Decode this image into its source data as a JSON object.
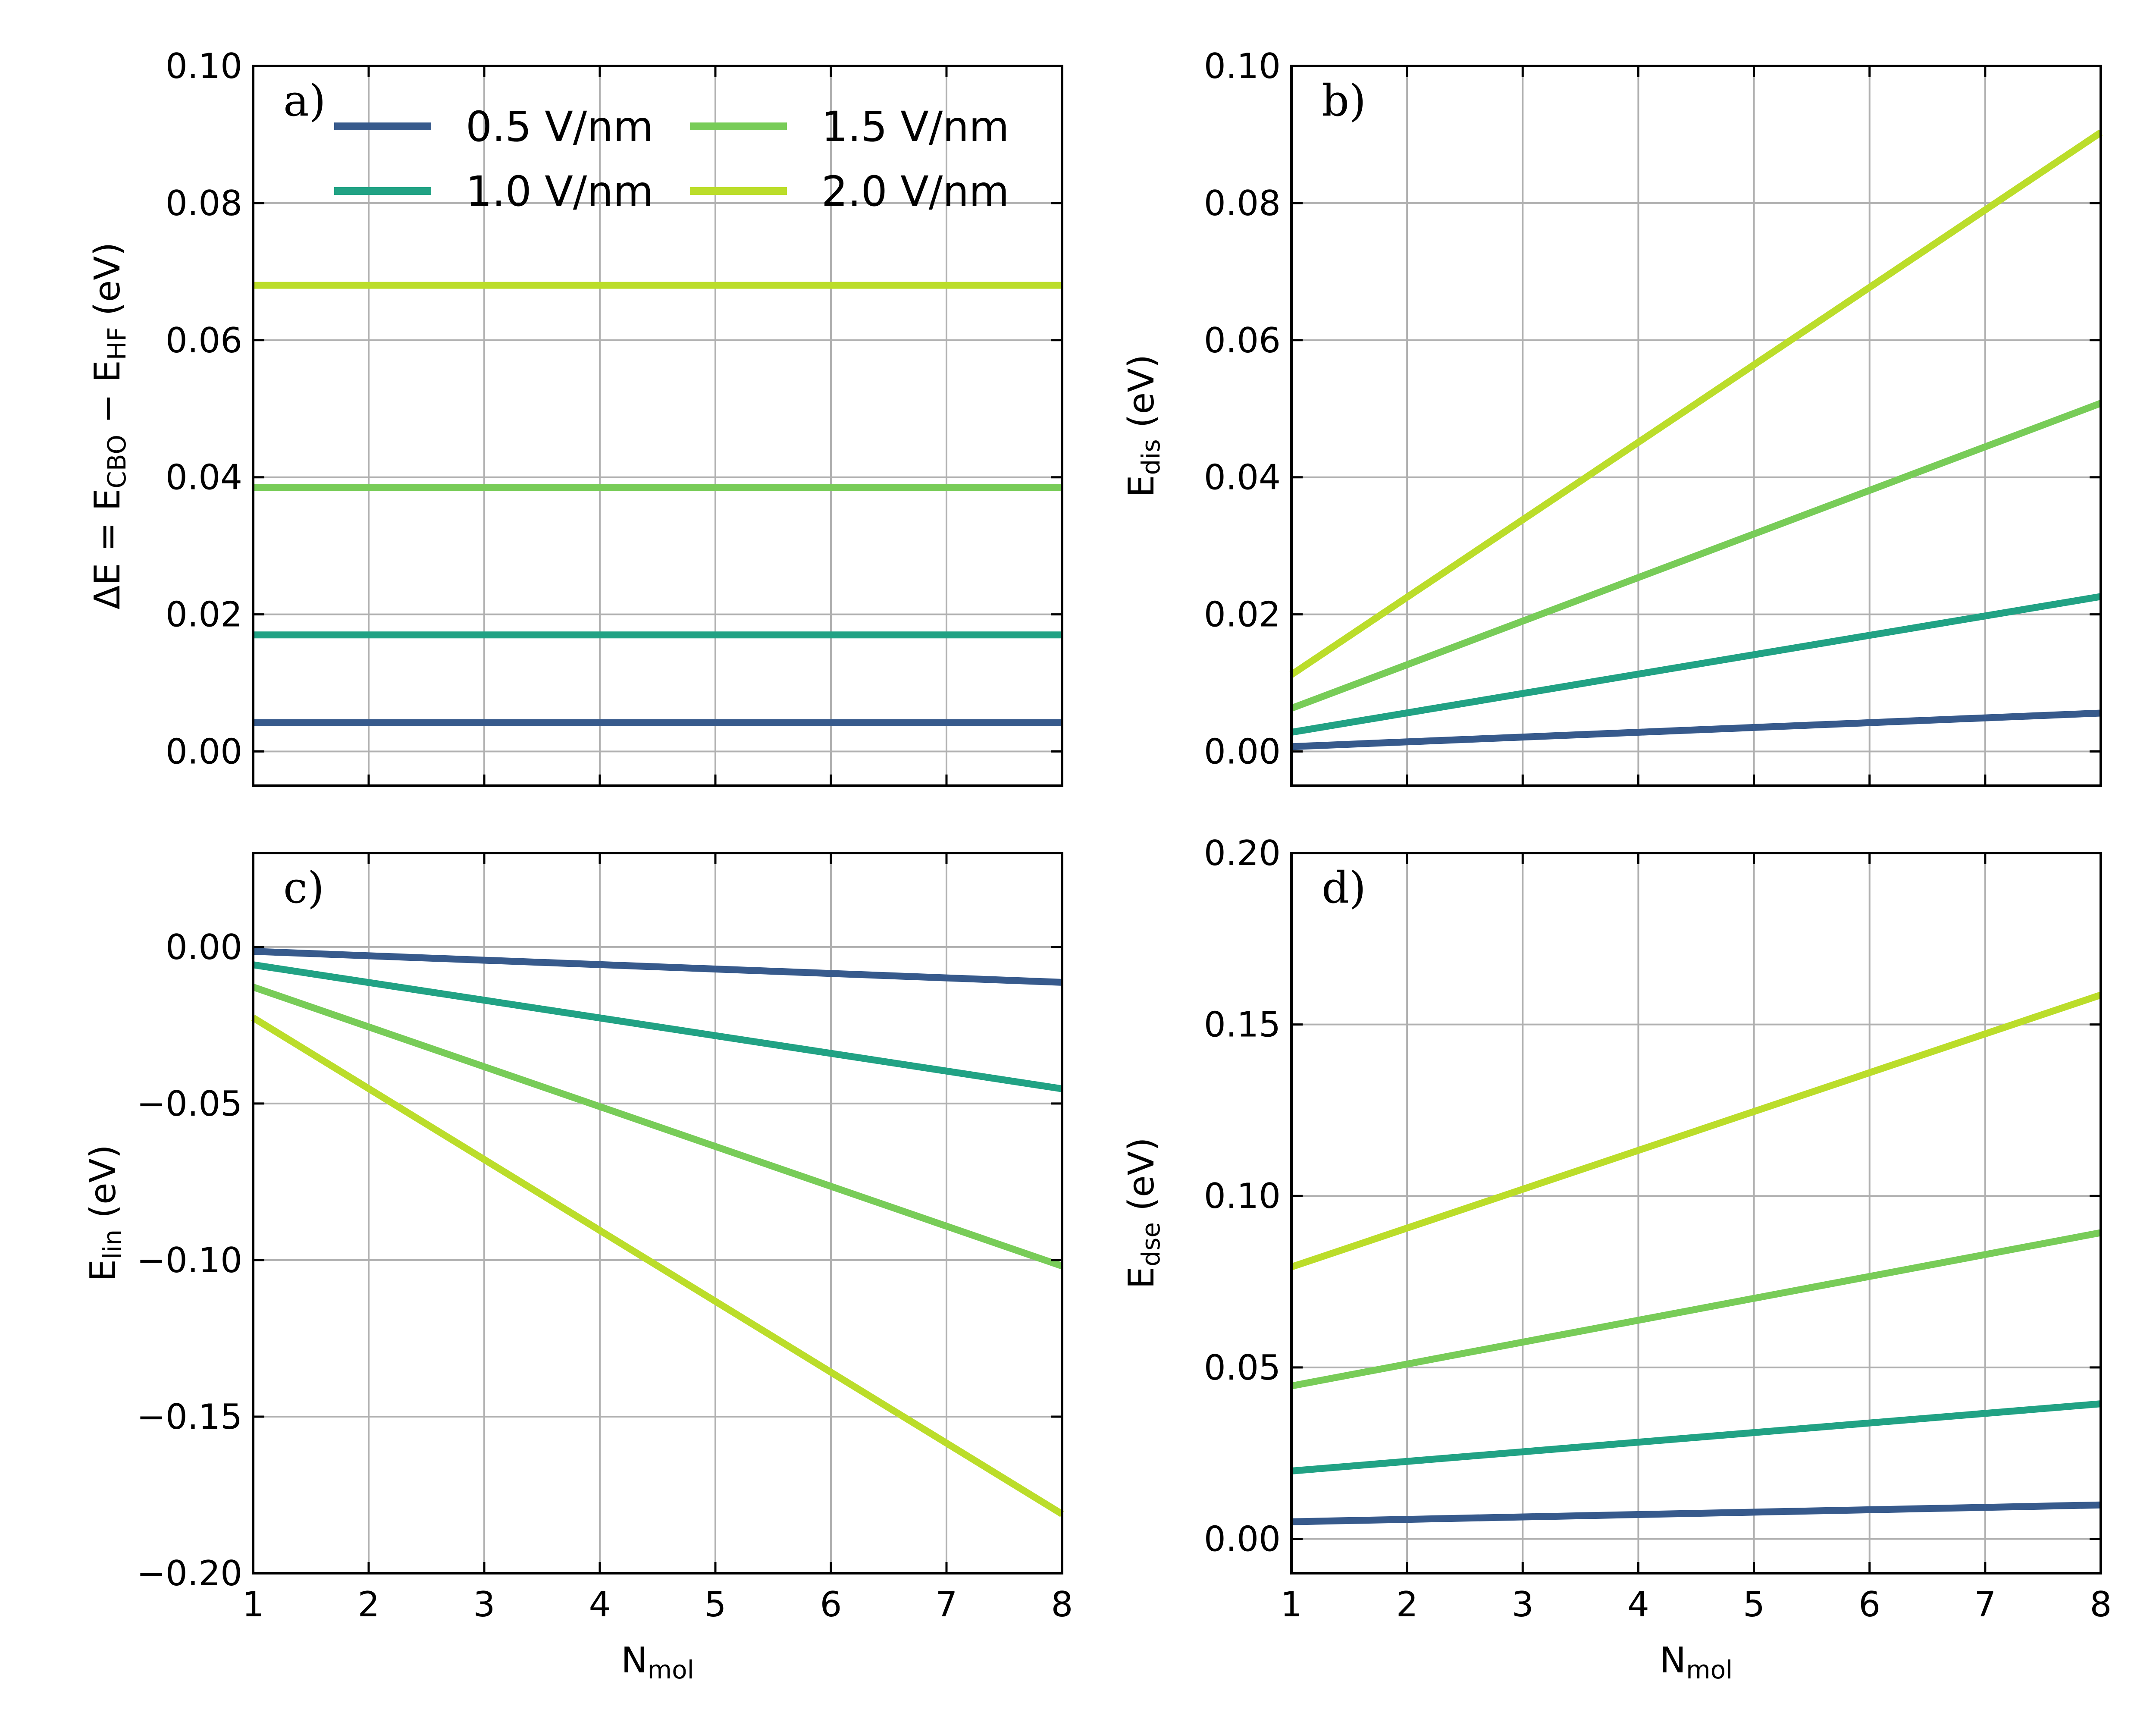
{
  "colors": {
    "0.5 V/nm": "#375a8c",
    "1.0 V/nm": "#21a284",
    "1.5 V/nm": "#78cc58",
    "2.0 V/nm": "#bbdd2a"
  },
  "legend": {
    "entries": [
      "0.5 V/nm",
      "1.0 V/nm",
      "1.5 V/nm",
      "2.0 V/nm"
    ],
    "location": "top, inside panel a"
  },
  "chart_data": [
    {
      "id": "a",
      "type": "line",
      "panel_label": "a)",
      "x": [
        1,
        8
      ],
      "xlim": [
        1,
        8
      ],
      "ylim": [
        -0.005,
        0.1
      ],
      "yticks": [
        0.0,
        0.02,
        0.04,
        0.06,
        0.08,
        0.1
      ],
      "ytick_labels": [
        "0.00",
        "0.02",
        "0.04",
        "0.06",
        "0.08",
        "0.10"
      ],
      "xticks": [
        1,
        2,
        3,
        4,
        5,
        6,
        7,
        8
      ],
      "show_xtick_labels": false,
      "ylabel": {
        "parts": [
          [
            "ΔE = E",
            ""
          ],
          [
            "CBO",
            "sub"
          ],
          [
            " − E",
            ""
          ],
          [
            "HF",
            "sub"
          ],
          [
            " (eV)",
            ""
          ]
        ]
      },
      "xlabel": null,
      "grid": true,
      "series": [
        {
          "name": "0.5 V/nm",
          "values": [
            0.0042,
            0.0042
          ]
        },
        {
          "name": "1.0 V/nm",
          "values": [
            0.017,
            0.017
          ]
        },
        {
          "name": "1.5 V/nm",
          "values": [
            0.0385,
            0.0385
          ]
        },
        {
          "name": "2.0 V/nm",
          "values": [
            0.068,
            0.068
          ]
        }
      ]
    },
    {
      "id": "b",
      "type": "line",
      "panel_label": "b)",
      "x": [
        1,
        8
      ],
      "xlim": [
        1,
        8
      ],
      "ylim": [
        -0.005,
        0.1
      ],
      "yticks": [
        0.0,
        0.02,
        0.04,
        0.06,
        0.08,
        0.1
      ],
      "ytick_labels": [
        "0.00",
        "0.02",
        "0.04",
        "0.06",
        "0.08",
        "0.10"
      ],
      "xticks": [
        1,
        2,
        3,
        4,
        5,
        6,
        7,
        8
      ],
      "show_xtick_labels": false,
      "ylabel": {
        "parts": [
          [
            "E",
            ""
          ],
          [
            "dis",
            "sub"
          ],
          [
            " (eV)",
            ""
          ]
        ]
      },
      "xlabel": null,
      "grid": true,
      "series": [
        {
          "name": "0.5 V/nm",
          "values": [
            0.0007,
            0.0056
          ]
        },
        {
          "name": "1.0 V/nm",
          "values": [
            0.0028,
            0.0226
          ]
        },
        {
          "name": "1.5 V/nm",
          "values": [
            0.0063,
            0.0508
          ]
        },
        {
          "name": "2.0 V/nm",
          "values": [
            0.0112,
            0.0903
          ]
        }
      ]
    },
    {
      "id": "c",
      "type": "line",
      "panel_label": "c)",
      "x": [
        1,
        8
      ],
      "xlim": [
        1,
        8
      ],
      "ylim": [
        -0.2,
        0.03
      ],
      "yticks": [
        -0.2,
        -0.15,
        -0.1,
        -0.05,
        0.0
      ],
      "ytick_labels": [
        "−0.20",
        "−0.15",
        "−0.10",
        "−0.05",
        "0.00"
      ],
      "xticks": [
        1,
        2,
        3,
        4,
        5,
        6,
        7,
        8
      ],
      "show_xtick_labels": true,
      "xtick_labels": [
        "1",
        "2",
        "3",
        "4",
        "5",
        "6",
        "7",
        "8"
      ],
      "ylabel": {
        "parts": [
          [
            "E",
            ""
          ],
          [
            "lin",
            "sub"
          ],
          [
            " (eV)",
            ""
          ]
        ]
      },
      "xlabel": {
        "parts": [
          [
            "N",
            ""
          ],
          [
            "mol",
            "sub"
          ]
        ]
      },
      "grid": true,
      "series": [
        {
          "name": "0.5 V/nm",
          "values": [
            -0.0014,
            -0.0113
          ]
        },
        {
          "name": "1.0 V/nm",
          "values": [
            -0.0057,
            -0.0453
          ]
        },
        {
          "name": "1.5 V/nm",
          "values": [
            -0.0128,
            -0.1019
          ]
        },
        {
          "name": "2.0 V/nm",
          "values": [
            -0.0226,
            -0.1811
          ]
        }
      ]
    },
    {
      "id": "d",
      "type": "line",
      "panel_label": "d)",
      "x": [
        1,
        8
      ],
      "xlim": [
        1,
        8
      ],
      "ylim": [
        -0.01,
        0.2
      ],
      "yticks": [
        0.0,
        0.05,
        0.1,
        0.15,
        0.2
      ],
      "ytick_labels": [
        "0.00",
        "0.05",
        "0.10",
        "0.15",
        "0.20"
      ],
      "xticks": [
        1,
        2,
        3,
        4,
        5,
        6,
        7,
        8
      ],
      "show_xtick_labels": true,
      "xtick_labels": [
        "1",
        "2",
        "3",
        "4",
        "5",
        "6",
        "7",
        "8"
      ],
      "ylabel": {
        "parts": [
          [
            "E",
            ""
          ],
          [
            "dse",
            "sub"
          ],
          [
            " (eV)",
            ""
          ]
        ]
      },
      "xlabel": {
        "parts": [
          [
            "N",
            ""
          ],
          [
            "mol",
            "sub"
          ]
        ]
      },
      "grid": true,
      "series": [
        {
          "name": "0.5 V/nm",
          "values": [
            0.005,
            0.0099
          ]
        },
        {
          "name": "1.0 V/nm",
          "values": [
            0.0198,
            0.0394
          ]
        },
        {
          "name": "1.5 V/nm",
          "values": [
            0.0446,
            0.0893
          ]
        },
        {
          "name": "2.0 V/nm",
          "values": [
            0.0793,
            0.1586
          ]
        }
      ]
    }
  ]
}
